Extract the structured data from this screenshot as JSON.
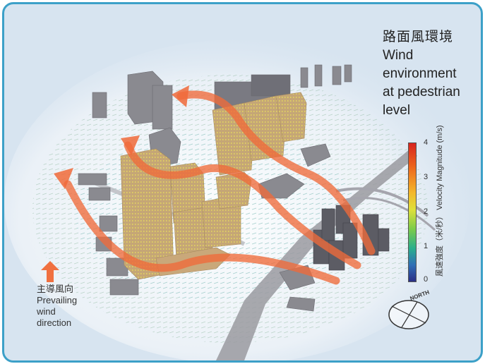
{
  "title": {
    "zh": "路面風環境",
    "en_lines": [
      "Wind",
      "environment",
      "at pedestrian",
      "level"
    ]
  },
  "prevailing": {
    "zh": "主導風向",
    "en_lines": [
      "Prevailing",
      "wind",
      "direction"
    ],
    "arrow_color": "#f07040"
  },
  "colorbar": {
    "ticks": [
      "4",
      "3",
      "2",
      "1",
      "0"
    ],
    "label": "風速強度（米/秒） Velocity Magnitude (m/s)",
    "min": 0,
    "max": 4
  },
  "compass": {
    "label": "NORTH"
  },
  "colors": {
    "frame": "#3ca0c8",
    "background": "#d7e4f0",
    "wind_path": "#f06a3a",
    "road": "#9a9aa0",
    "tan_building": "#c9a87a",
    "grey_building": "#8a8a90"
  }
}
